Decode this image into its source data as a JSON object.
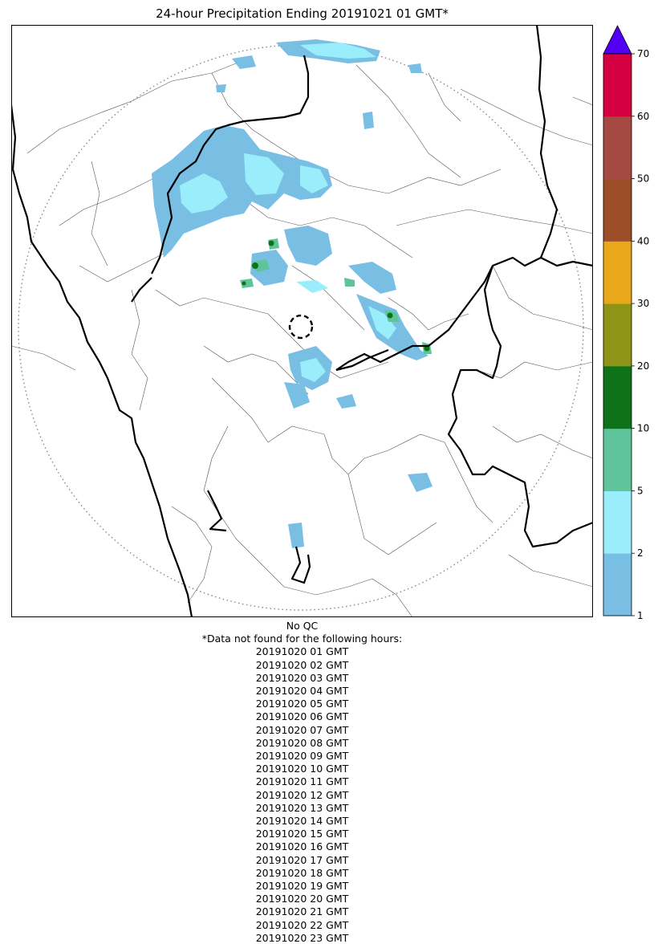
{
  "title": "24-hour Precipitation Ending 20191021 01 GMT*",
  "qc_label": "No QC",
  "missing_header": "*Data not found for the following hours:",
  "missing_hours": [
    "20191020 01 GMT",
    "20191020 02 GMT",
    "20191020 03 GMT",
    "20191020 04 GMT",
    "20191020 05 GMT",
    "20191020 06 GMT",
    "20191020 07 GMT",
    "20191020 08 GMT",
    "20191020 09 GMT",
    "20191020 10 GMT",
    "20191020 11 GMT",
    "20191020 12 GMT",
    "20191020 13 GMT",
    "20191020 14 GMT",
    "20191020 15 GMT",
    "20191020 16 GMT",
    "20191020 17 GMT",
    "20191020 18 GMT",
    "20191020 19 GMT",
    "20191020 20 GMT",
    "20191020 21 GMT",
    "20191020 22 GMT",
    "20191020 23 GMT"
  ],
  "colorbar": {
    "ticks": [
      "1",
      "2",
      "5",
      "10",
      "20",
      "30",
      "40",
      "50",
      "60",
      "70"
    ],
    "colors": [
      "#78bfe3",
      "#9aeefc",
      "#5fc49a",
      "#0e7218",
      "#8d9418",
      "#e8a81a",
      "#9c4e29",
      "#a54a42",
      "#d4003f"
    ],
    "extend_color": "#5200f5"
  },
  "legend_colors": {
    "light_rain": "#78bfe3",
    "moderate_rain": "#9aeefc",
    "heavy_rain": "#5fc49a",
    "very_heavy_rain": "#0e7218",
    "boundary": "#000000",
    "district_line": "#555555",
    "range_ring": "#888888"
  }
}
